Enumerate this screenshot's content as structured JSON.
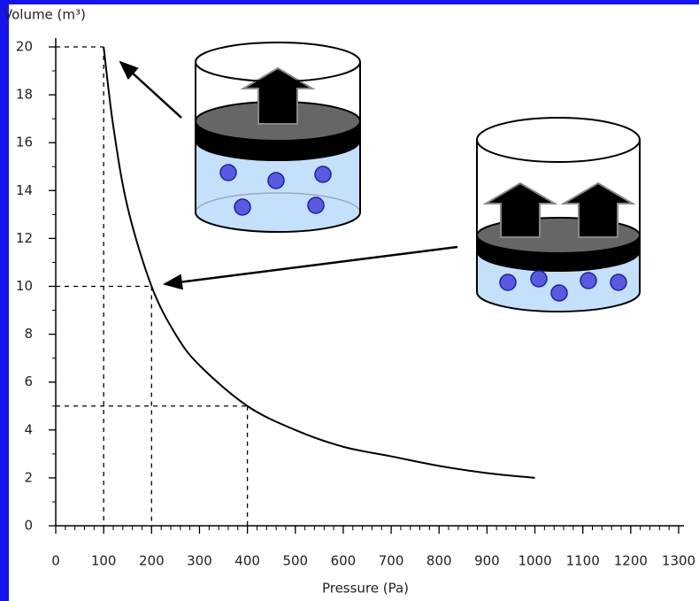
{
  "chart_data": {
    "type": "line",
    "y_label": "Volume (m³)",
    "x_label": "Pressure (Pa)",
    "series": [
      {
        "color": "#000000",
        "x": [
          100,
          120,
          150,
          200,
          250,
          300,
          400,
          500,
          600,
          700,
          800,
          900,
          1000
        ],
        "values": [
          20,
          16.7,
          13.3,
          10,
          8,
          6.7,
          5,
          4,
          3.3,
          2.9,
          2.5,
          2.2,
          2
        ]
      }
    ],
    "reference_points": {
      "x": [
        100,
        200,
        400
      ],
      "values": [
        20,
        10,
        5
      ]
    },
    "xlim": [
      0,
      1300
    ],
    "ylim": [
      0,
      20
    ],
    "xticks": [
      0,
      100,
      200,
      300,
      400,
      500,
      600,
      700,
      800,
      900,
      1000,
      1100,
      1200,
      1300
    ],
    "yticks": [
      0,
      2,
      4,
      6,
      8,
      10,
      12,
      14,
      16,
      18,
      20
    ],
    "x_minor_step": 20,
    "y_minor_step": 1
  }
}
